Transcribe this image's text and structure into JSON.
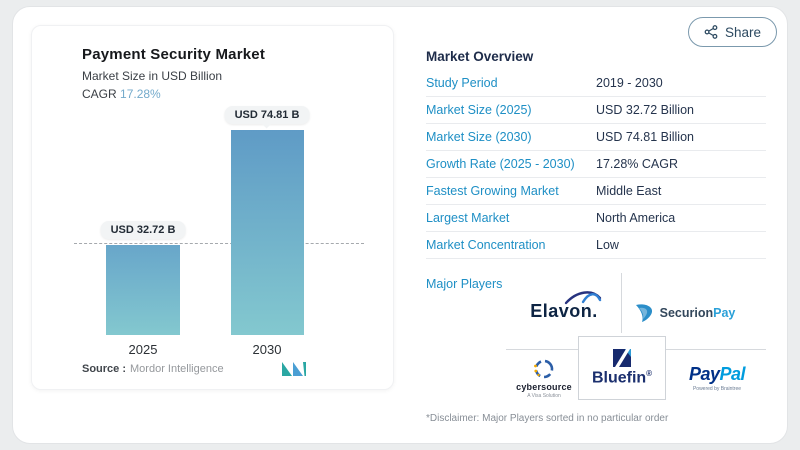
{
  "share": {
    "label": "Share",
    "icon": "share-nodes-icon"
  },
  "chart_panel": {
    "title": "Payment Security Market",
    "subtitle": "Market Size in USD Billion",
    "cagr_label": "CAGR",
    "cagr_value": "17.28%",
    "source_label": "Source :",
    "source_value": "Mordor Intelligence"
  },
  "chart_data": {
    "type": "bar",
    "categories": [
      "2025",
      "2030"
    ],
    "values": [
      32.72,
      74.81
    ],
    "bar_labels": [
      "USD 32.72 B",
      "USD 74.81 B"
    ],
    "title": "Payment Security Market",
    "subtitle": "Market Size in USD Billion",
    "cagr": "17.28%",
    "xlabel": "",
    "ylabel": "USD Billion",
    "ylim": [
      0,
      80
    ],
    "grid": false,
    "reference_line_at": 32.72,
    "bar_color_top": "#5f9bc6",
    "bar_color_bottom": "#83c8cf"
  },
  "overview": {
    "title": "Market Overview",
    "rows": [
      {
        "label": "Study Period",
        "value": "2019 - 2030"
      },
      {
        "label": "Market Size (2025)",
        "value": "USD 32.72 Billion"
      },
      {
        "label": "Market Size (2030)",
        "value": "USD 74.81 Billion"
      },
      {
        "label": "Growth Rate (2025 - 2030)",
        "value": "17.28% CAGR"
      },
      {
        "label": "Fastest Growing Market",
        "value": "Middle East"
      },
      {
        "label": "Largest Market",
        "value": "North America"
      },
      {
        "label": "Market Concentration",
        "value": "Low"
      }
    ],
    "major_players_label": "Major Players",
    "disclaimer": "*Disclaimer: Major Players sorted in no particular order"
  },
  "logos": {
    "elavon": {
      "text": "Elavon."
    },
    "securionpay": {
      "text_dark": "Securion",
      "text_blue": "Pay"
    },
    "cybersource": {
      "text": "cybersource",
      "tagline": "A Visa Solution"
    },
    "bluefin": {
      "text": "Bluefin",
      "reg": "®"
    },
    "paypal": {
      "pay": "Pay",
      "pal": "Pal",
      "tagline": "Powered by Braintree"
    }
  },
  "colors": {
    "accent_blue": "#1e8fc5",
    "value_navy": "#25344d",
    "cagr_blue": "#74aacb",
    "page_bg": "#ebedee"
  }
}
